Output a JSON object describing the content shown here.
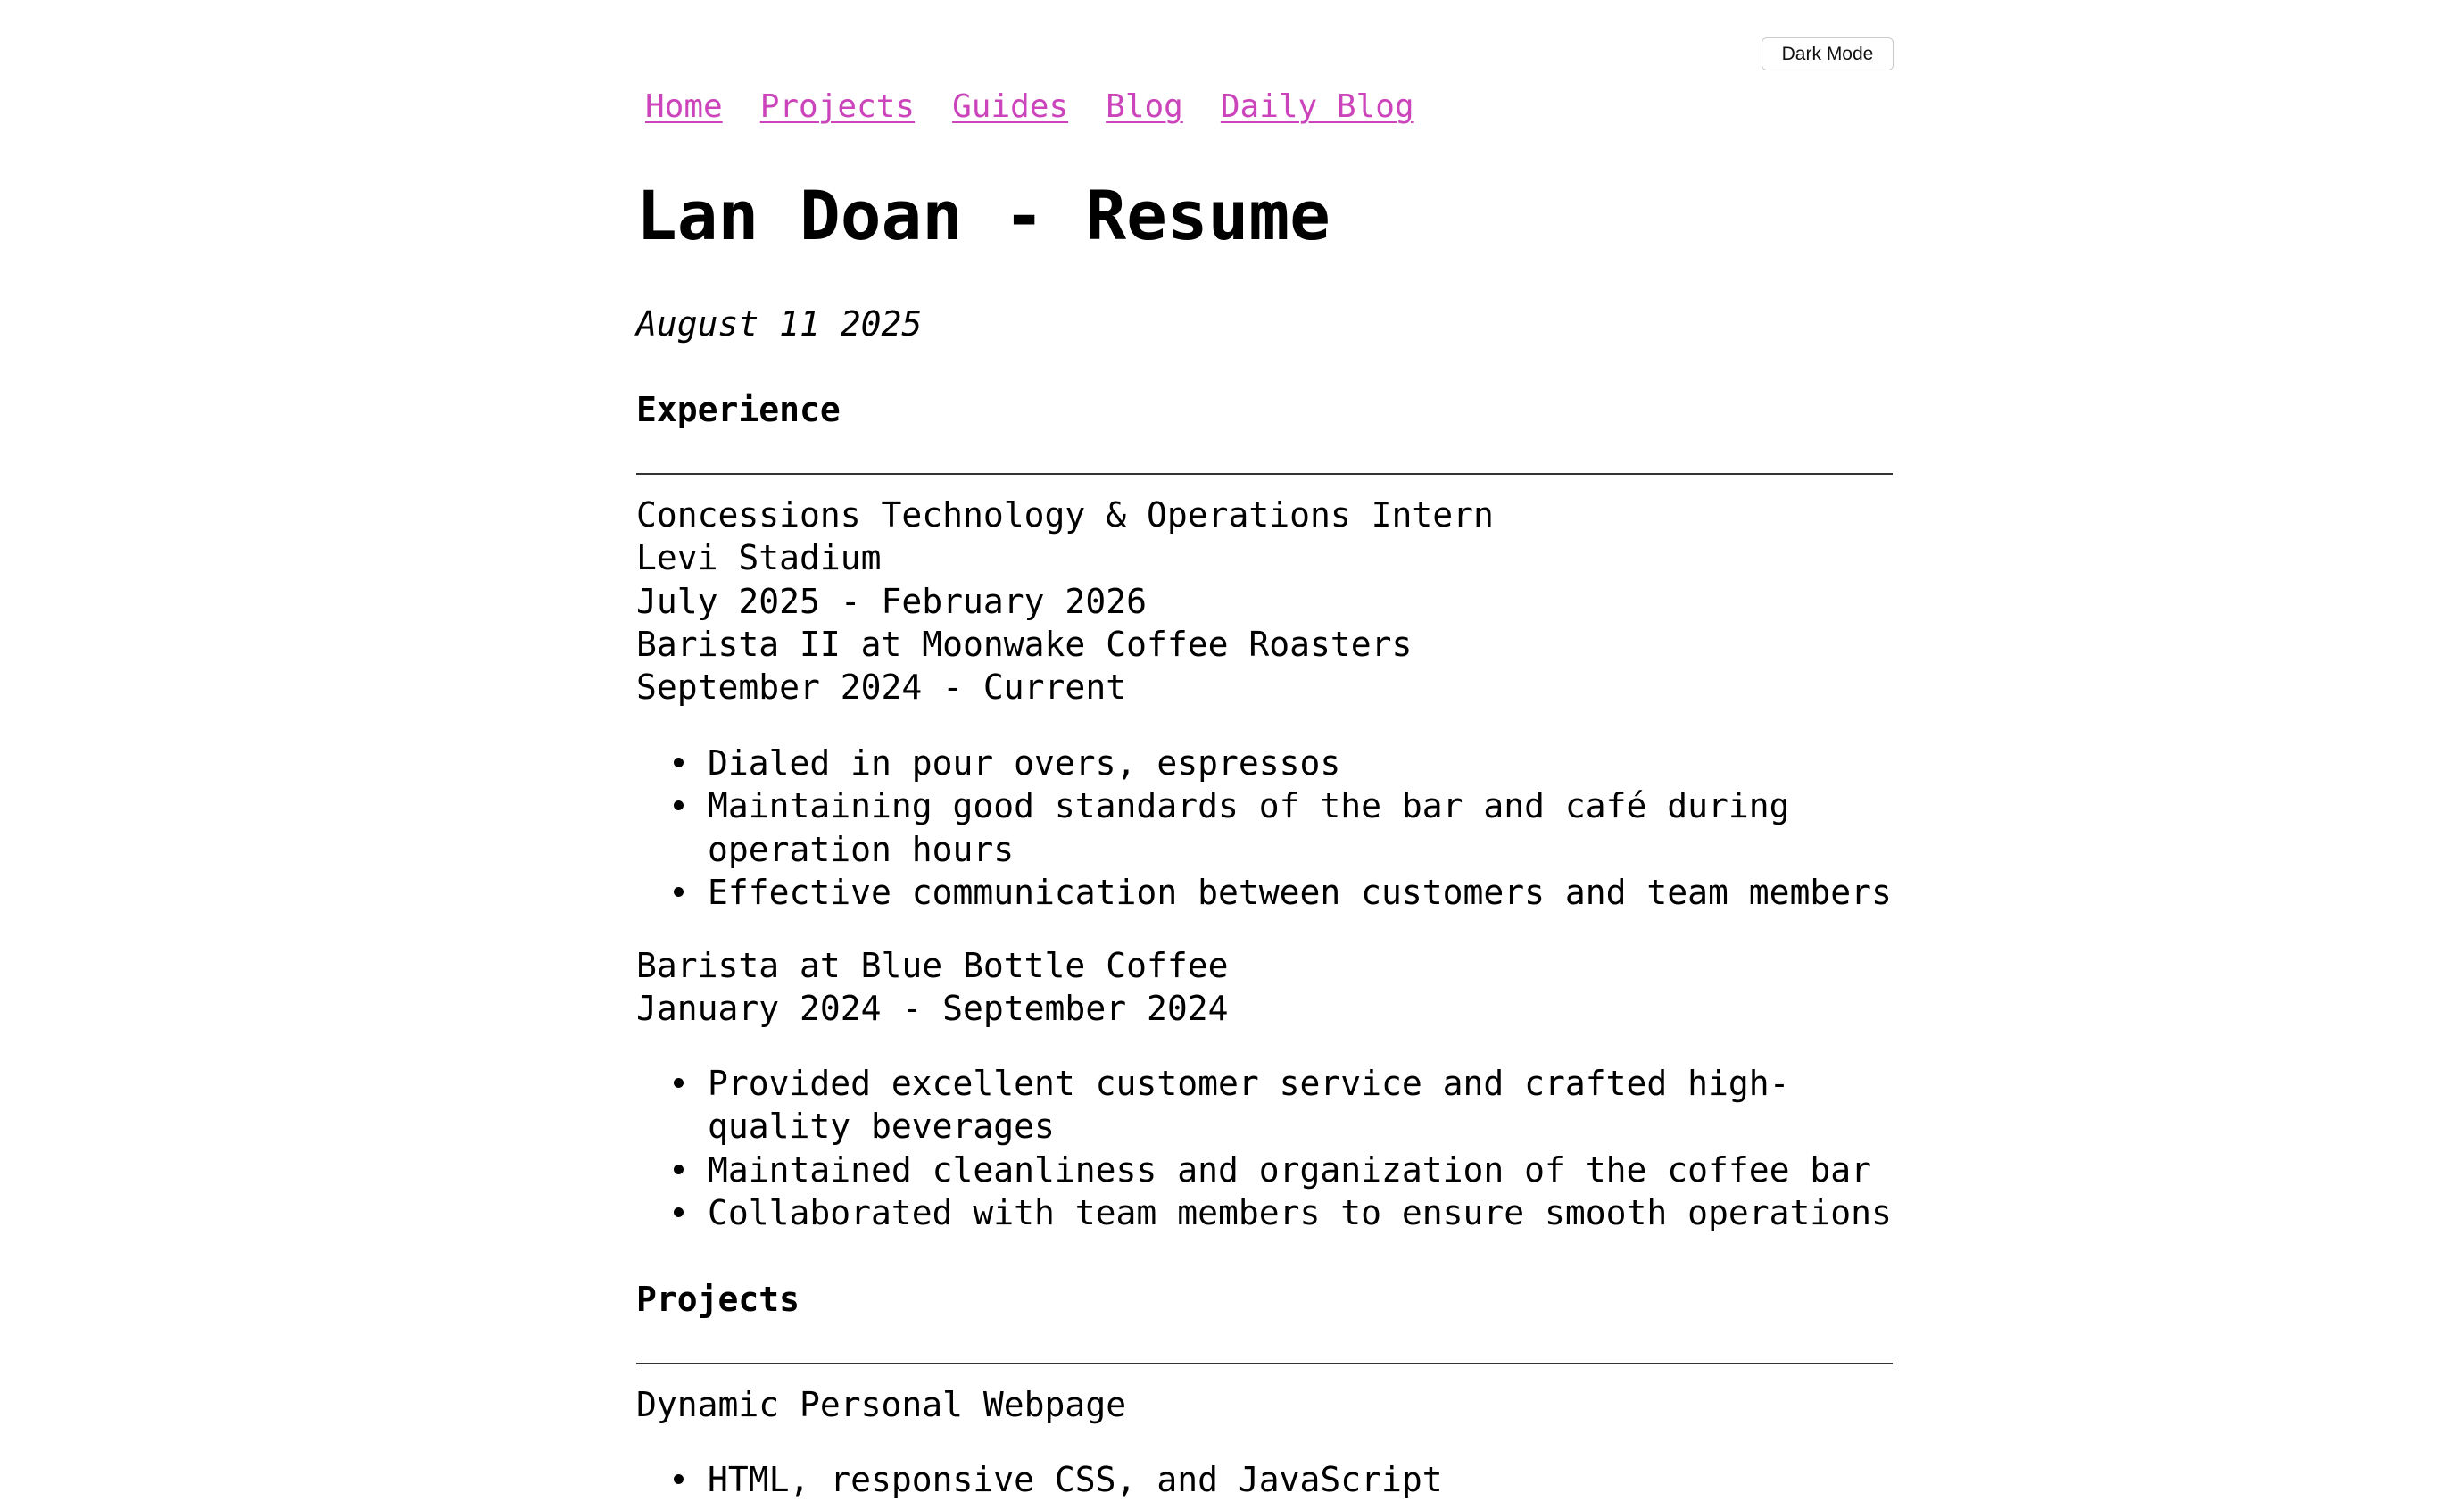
{
  "toolbar": {
    "dark_mode_label": "Dark Mode"
  },
  "nav": {
    "items": [
      {
        "label": "Home"
      },
      {
        "label": "Projects"
      },
      {
        "label": "Guides"
      },
      {
        "label": "Blog"
      },
      {
        "label": "Daily Blog"
      }
    ],
    "link_color": "#cc44bb"
  },
  "header": {
    "title": "Lan Doan - Resume",
    "date": "August 11 2025"
  },
  "experience": {
    "heading": "Experience",
    "jobs": [
      {
        "title": "Concessions Technology & Operations Intern",
        "company": "Levi Stadium",
        "dates": "July 2025 - February 2026"
      },
      {
        "title": "Barista II at Moonwake Coffee Roasters",
        "dates": "September 2024 - Current",
        "bullets": [
          "Dialed in pour overs, espressos",
          "Maintaining good standards of the bar and café during operation hours",
          "Effective communication between customers and team members"
        ]
      },
      {
        "title": "Barista at Blue Bottle Coffee",
        "dates": "January 2024 - September 2024",
        "bullets": [
          "Provided excellent customer service and crafted high-quality beverages",
          "Maintained cleanliness and organization of the coffee bar",
          "Collaborated with team members to ensure smooth operations"
        ]
      }
    ]
  },
  "projects": {
    "heading": "Projects",
    "items": [
      {
        "title": "Dynamic Personal Webpage",
        "bullets": [
          "HTML, responsive CSS, and JavaScript"
        ]
      }
    ]
  }
}
